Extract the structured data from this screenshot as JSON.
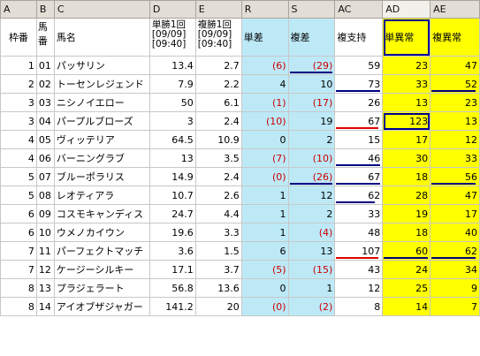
{
  "columns": [
    "A",
    "B",
    "C",
    "D",
    "E",
    "R",
    "S",
    "AC",
    "AD",
    "AE"
  ],
  "fields": {
    "waku": "枠番",
    "uma": "馬番",
    "name": "馬名",
    "tansho": [
      "単勝1回",
      "[09/09]",
      "[09:40]"
    ],
    "fukusho": [
      "複勝1回",
      "[09/09]",
      "[09:40]"
    ],
    "tansa": "単差",
    "fukusa": "複差",
    "fukushiji": "複支持",
    "taniso": "単異常",
    "fukuiso": "複異常"
  },
  "rows": [
    {
      "waku": "1",
      "uma": "01",
      "name": "パッサリン",
      "tan": "13.4",
      "fuku": "2.7",
      "tansa": "(6)",
      "fukusa": "(29)",
      "shiji": "59",
      "ad": "23",
      "ae": "47"
    },
    {
      "waku": "2",
      "uma": "02",
      "name": "トーセンレジェンド",
      "tan": "7.9",
      "fuku": "2.2",
      "tansa": "4",
      "fukusa": "10",
      "shiji": "73",
      "ad": "33",
      "ae": "52"
    },
    {
      "waku": "3",
      "uma": "03",
      "name": "ニシノイエロー",
      "tan": "50",
      "fuku": "6.1",
      "tansa": "(1)",
      "fukusa": "(17)",
      "shiji": "26",
      "ad": "13",
      "ae": "23"
    },
    {
      "waku": "3",
      "uma": "04",
      "name": "パープルブローズ",
      "tan": "3",
      "fuku": "2.4",
      "tansa": "(10)",
      "fukusa": "19",
      "shiji": "67",
      "ad": "123",
      "ae": "13"
    },
    {
      "waku": "4",
      "uma": "05",
      "name": "ヴィッテリア",
      "tan": "64.5",
      "fuku": "10.9",
      "tansa": "0",
      "fukusa": "2",
      "shiji": "15",
      "ad": "17",
      "ae": "12"
    },
    {
      "waku": "4",
      "uma": "06",
      "name": "バーニングラブ",
      "tan": "13",
      "fuku": "3.5",
      "tansa": "(7)",
      "fukusa": "(10)",
      "shiji": "46",
      "ad": "30",
      "ae": "33"
    },
    {
      "waku": "5",
      "uma": "07",
      "name": "ブルーポラリス",
      "tan": "14.9",
      "fuku": "2.4",
      "tansa": "(0)",
      "fukusa": "(26)",
      "shiji": "67",
      "ad": "18",
      "ae": "56"
    },
    {
      "waku": "5",
      "uma": "08",
      "name": "レオティアラ",
      "tan": "10.7",
      "fuku": "2.6",
      "tansa": "1",
      "fukusa": "12",
      "shiji": "62",
      "ad": "28",
      "ae": "47"
    },
    {
      "waku": "6",
      "uma": "09",
      "name": "コスモキャンディス",
      "tan": "24.7",
      "fuku": "4.4",
      "tansa": "1",
      "fukusa": "2",
      "shiji": "33",
      "ad": "19",
      "ae": "17"
    },
    {
      "waku": "6",
      "uma": "10",
      "name": "ウメノカイウン",
      "tan": "19.6",
      "fuku": "3.3",
      "tansa": "1",
      "fukusa": "(4)",
      "shiji": "48",
      "ad": "18",
      "ae": "40"
    },
    {
      "waku": "7",
      "uma": "11",
      "name": "パーフェクトマッチ",
      "tan": "3.6",
      "fuku": "1.5",
      "tansa": "6",
      "fukusa": "13",
      "shiji": "107",
      "ad": "60",
      "ae": "62"
    },
    {
      "waku": "7",
      "uma": "12",
      "name": "ケージーシルキー",
      "tan": "17.1",
      "fuku": "3.7",
      "tansa": "(5)",
      "fukusa": "(15)",
      "shiji": "43",
      "ad": "24",
      "ae": "34"
    },
    {
      "waku": "8",
      "uma": "13",
      "name": "プラジェラート",
      "tan": "56.8",
      "fuku": "13.6",
      "tansa": "0",
      "fukusa": "1",
      "shiji": "12",
      "ad": "25",
      "ae": "9"
    },
    {
      "waku": "8",
      "uma": "14",
      "name": "アイオブザジャガー",
      "tan": "141.2",
      "fuku": "20",
      "tansa": "(0)",
      "fukusa": "(2)",
      "shiji": "8",
      "ad": "14",
      "ae": "7"
    }
  ],
  "colors": {
    "blue_fill": "#bde9f7",
    "yellow_fill": "#ffff00",
    "negative_text": "#cc0000",
    "selection_box": "#00008b"
  }
}
